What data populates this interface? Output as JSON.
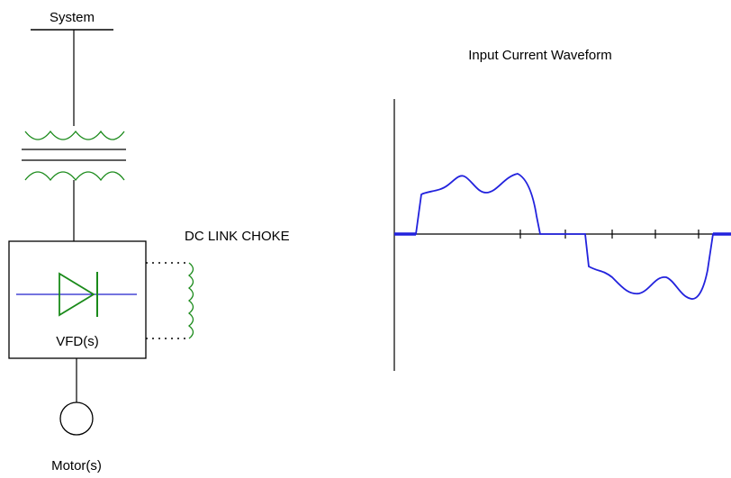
{
  "system": "System",
  "choke": "DC LINK CHOKE",
  "drive": "VFD(s)",
  "motor": "Motor(s)",
  "waveform_title": "Input Current Waveform"
}
